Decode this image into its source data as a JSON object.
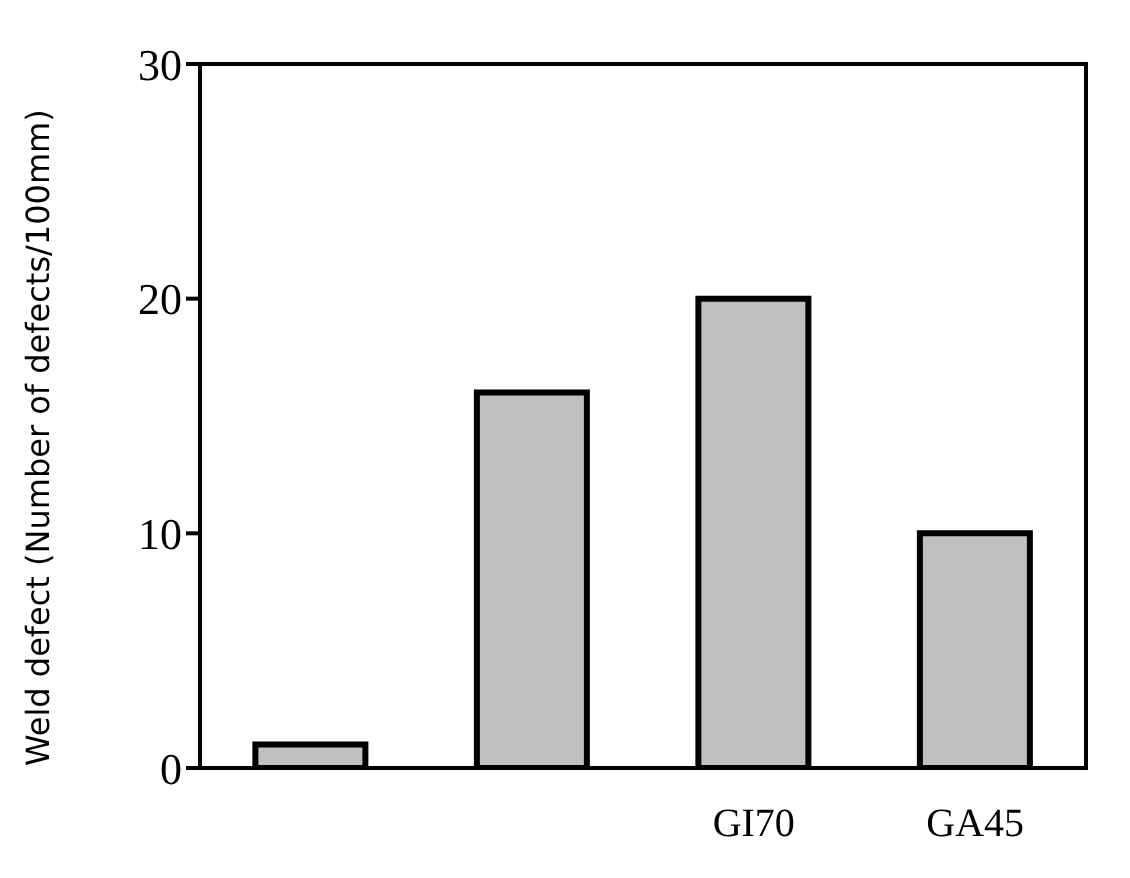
{
  "chart_data": {
    "type": "bar",
    "ylabel": "Weld defect (Number of defects/100mm)",
    "categories": [
      null,
      null,
      "GI70",
      "GA45"
    ],
    "values": [
      1,
      16,
      20,
      10
    ],
    "color": "#c0c0c0",
    "ylim": [
      0,
      30
    ],
    "yticks": [
      0,
      10,
      20,
      30
    ],
    "grid": false,
    "legend": false
  }
}
